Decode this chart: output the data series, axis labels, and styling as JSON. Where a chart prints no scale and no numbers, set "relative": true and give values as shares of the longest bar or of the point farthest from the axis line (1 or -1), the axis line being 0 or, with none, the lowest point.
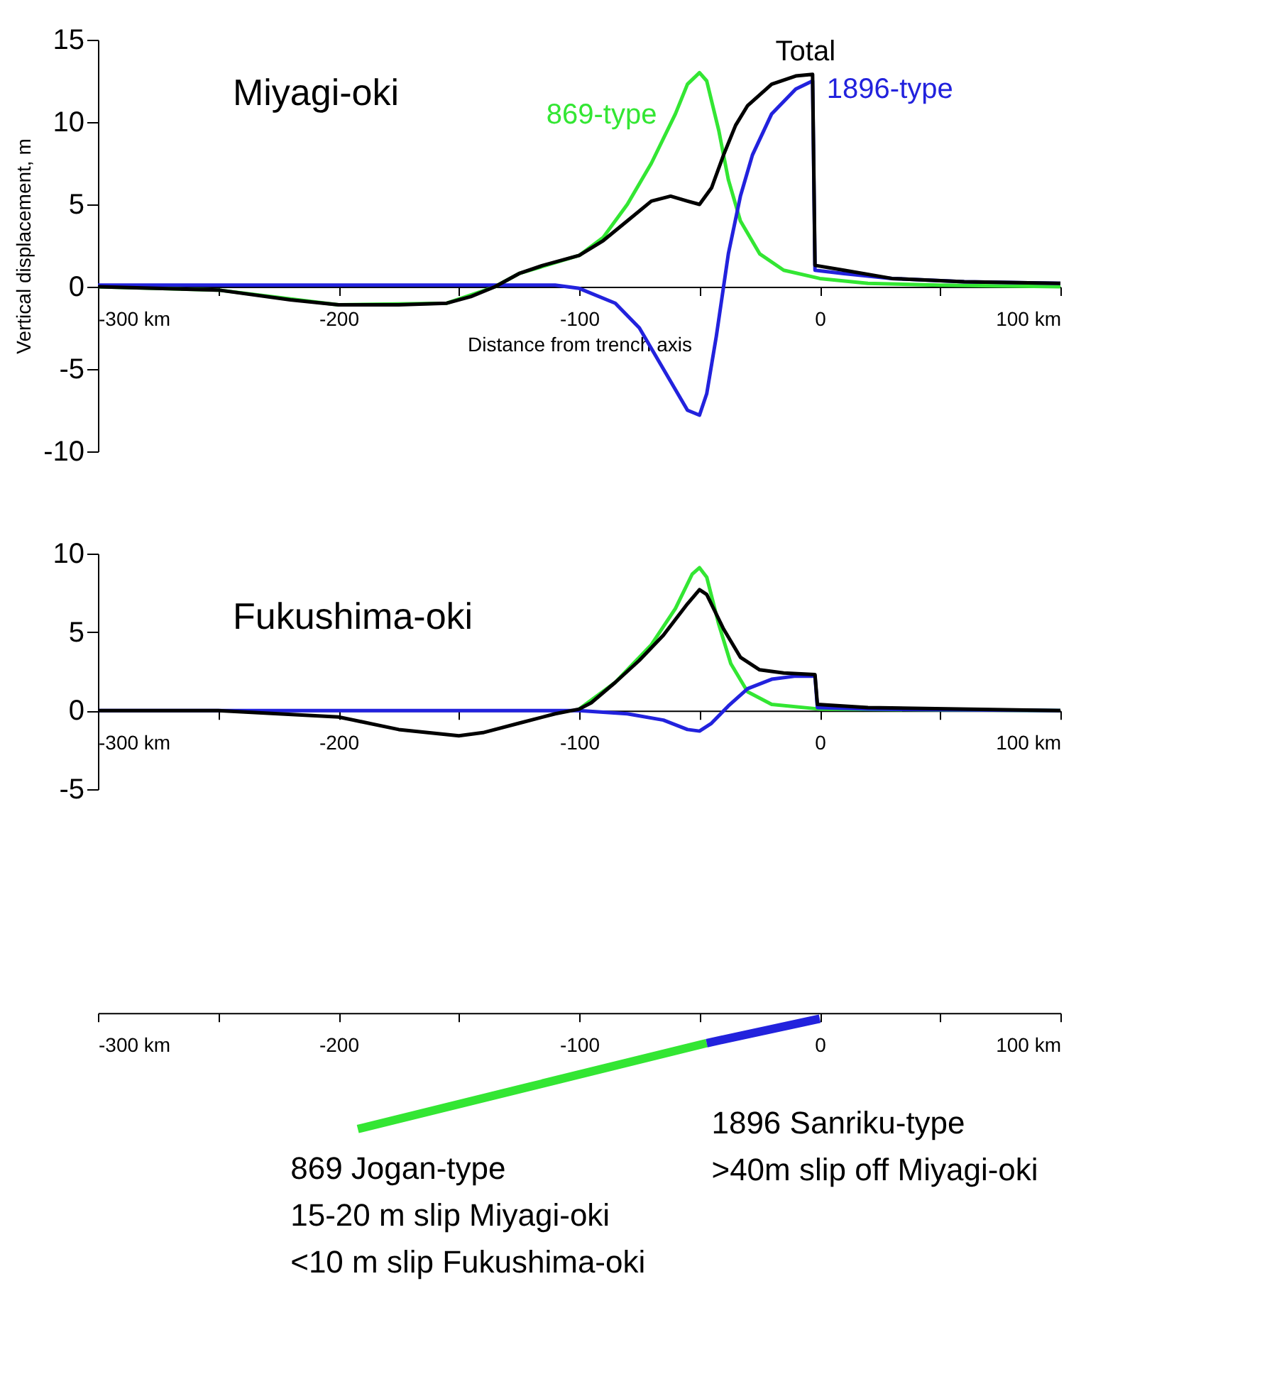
{
  "chart_data": [
    {
      "type": "line",
      "title": "Miyagi-oki",
      "xlabel": "Distance from trench axis",
      "ylabel": "Vertical displacement, m",
      "xlim": [
        -300,
        100
      ],
      "ylim": [
        -10,
        15
      ],
      "xticks": [
        {
          "value": -300,
          "label": "-300 km"
        },
        {
          "value": -250,
          "label": null
        },
        -200,
        {
          "value": -150,
          "label": null
        },
        -100,
        {
          "value": -50,
          "label": null
        },
        0,
        {
          "value": 50,
          "label": null
        },
        {
          "value": 100,
          "label": "100 km"
        }
      ],
      "yticks": [
        -10,
        -5,
        0,
        5,
        10,
        15
      ],
      "grid": false,
      "legend": false,
      "marker": "none",
      "line_style": "solid",
      "series": [
        {
          "name": "869-type",
          "color": "#33e633",
          "x": [
            -300,
            -250,
            -200,
            -155,
            -135,
            -125,
            -100,
            -90,
            -80,
            -70,
            -60,
            -55,
            -50,
            -47,
            -42,
            -38,
            -33,
            -25,
            -15,
            0,
            20,
            50,
            100
          ],
          "values": [
            0,
            -0.2,
            -1.1,
            -1.0,
            0,
            0.8,
            1.9,
            3.0,
            5.0,
            7.5,
            10.5,
            12.3,
            13.0,
            12.5,
            9.5,
            6.5,
            4.0,
            2.0,
            1.0,
            0.5,
            0.2,
            0.1,
            0
          ]
        },
        {
          "name": "1896-type",
          "color": "#2222dd",
          "x": [
            -300,
            -150,
            -110,
            -100,
            -85,
            -75,
            -65,
            -55,
            -50,
            -47,
            -43,
            -38,
            -33,
            -28,
            -20,
            -10,
            -3,
            -2,
            10,
            30,
            60,
            100
          ],
          "values": [
            0.1,
            0.1,
            0.1,
            -0.1,
            -1,
            -2.5,
            -5,
            -7.5,
            -7.8,
            -6.5,
            -3,
            2,
            5.5,
            8,
            10.5,
            12,
            12.5,
            1.0,
            0.8,
            0.5,
            0.3,
            0.2
          ]
        },
        {
          "name": "Total",
          "color": "#000000",
          "x": [
            -300,
            -250,
            -220,
            -200,
            -175,
            -155,
            -145,
            -135,
            -125,
            -115,
            -100,
            -90,
            -80,
            -70,
            -62,
            -55,
            -50,
            -45,
            -40,
            -35,
            -30,
            -20,
            -10,
            -3,
            -2,
            10,
            30,
            60,
            100
          ],
          "values": [
            0,
            -0.2,
            -0.8,
            -1.1,
            -1.1,
            -1.0,
            -0.6,
            0,
            0.8,
            1.3,
            1.9,
            2.8,
            4.0,
            5.2,
            5.5,
            5.2,
            5.0,
            6.0,
            8.0,
            9.8,
            11.0,
            12.3,
            12.8,
            12.9,
            1.3,
            1.0,
            0.5,
            0.3,
            0.2
          ]
        }
      ]
    },
    {
      "type": "line",
      "title": "Fukushima-oki",
      "xlim": [
        -300,
        100
      ],
      "ylim": [
        -5,
        10
      ],
      "xticks": [
        {
          "value": -300,
          "label": "-300 km"
        },
        {
          "value": -250,
          "label": null
        },
        -200,
        {
          "value": -150,
          "label": null
        },
        -100,
        {
          "value": -50,
          "label": null
        },
        0,
        {
          "value": 50,
          "label": null
        },
        {
          "value": 100,
          "label": "100 km"
        }
      ],
      "yticks": [
        -5,
        0,
        5,
        10
      ],
      "grid": false,
      "legend": false,
      "marker": "none",
      "line_style": "solid",
      "series": [
        {
          "color": "#33e633",
          "x": [
            -100,
            -85,
            -70,
            -60,
            -53,
            -50,
            -47,
            -42,
            -37,
            -30,
            -20,
            0,
            100
          ],
          "values": [
            0.1,
            1.8,
            4.2,
            6.5,
            8.7,
            9.1,
            8.5,
            5.5,
            3.0,
            1.2,
            0.4,
            0.1,
            0
          ]
        },
        {
          "color": "#2222dd",
          "x": [
            -300,
            -110,
            -100,
            -80,
            -65,
            -55,
            -50,
            -45,
            -38,
            -30,
            -20,
            -10,
            -2,
            -1,
            20,
            100
          ],
          "values": [
            0,
            0,
            0,
            -0.2,
            -0.6,
            -1.2,
            -1.3,
            -0.8,
            0.3,
            1.4,
            2.0,
            2.2,
            2.2,
            0.2,
            0.1,
            0
          ]
        },
        {
          "color": "#000000",
          "x": [
            -300,
            -250,
            -200,
            -175,
            -150,
            -140,
            -125,
            -110,
            -100,
            -95,
            -85,
            -75,
            -65,
            -55,
            -50,
            -47,
            -40,
            -33,
            -25,
            -15,
            -2,
            -1,
            20,
            100
          ],
          "values": [
            0,
            0,
            -0.4,
            -1.2,
            -1.6,
            -1.4,
            -0.8,
            -0.2,
            0.1,
            0.5,
            1.8,
            3.2,
            4.8,
            6.8,
            7.7,
            7.4,
            5.2,
            3.4,
            2.6,
            2.4,
            2.3,
            0.4,
            0.2,
            0.0
          ]
        }
      ]
    },
    {
      "type": "line",
      "relative": true,
      "tick_labels": "x",
      "xlim": [
        -300,
        100
      ],
      "xticks": [
        {
          "value": -300,
          "label": "-300 km"
        },
        {
          "value": -250,
          "label": null
        },
        -200,
        {
          "value": -150,
          "label": null
        },
        -100,
        {
          "value": -50,
          "label": null
        },
        0,
        {
          "value": 50,
          "label": null
        },
        {
          "value": 100,
          "label": "100 km"
        }
      ],
      "grid": false,
      "legend": false,
      "marker": "none",
      "line_style": "solid",
      "series": [
        {
          "color": "#33e633",
          "x": [
            -192,
            -47
          ],
          "values": [
            -1,
            -0.26
          ]
        },
        {
          "color": "#2222dd",
          "x": [
            -47,
            0
          ],
          "values": [
            -0.26,
            -0.05
          ]
        }
      ],
      "annotations": [
        "869 Jogan-type\n15-20 m slip Miyagi-oki\n<10 m slip Fukushima-oki",
        "1896 Sanriku-type\n>40m slip off Miyagi-oki"
      ]
    }
  ]
}
